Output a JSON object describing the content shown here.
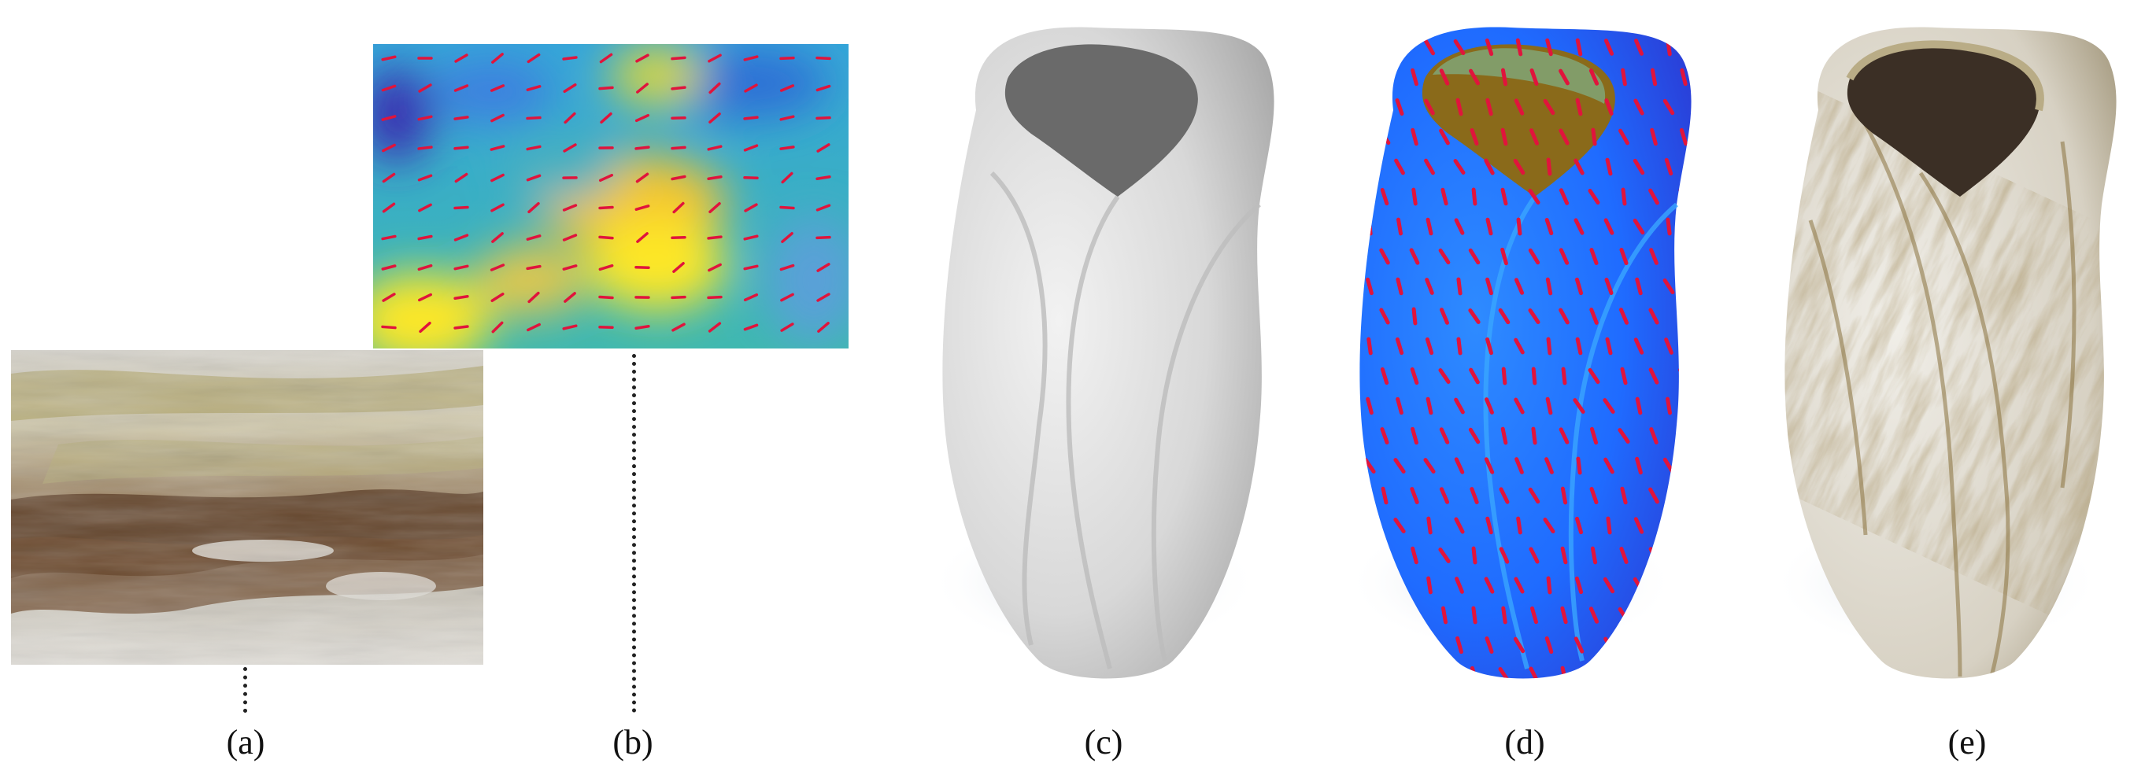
{
  "figure": {
    "panels": [
      {
        "id": "a",
        "label": "(a)",
        "content": "exemplar texture photograph"
      },
      {
        "id": "b",
        "label": "(b)",
        "content": "scalar field with direction field overlay"
      },
      {
        "id": "c",
        "label": "(c)",
        "content": "untextured vase mesh"
      },
      {
        "id": "d",
        "label": "(d)",
        "content": "field mapped onto vase"
      },
      {
        "id": "e",
        "label": "(e)",
        "content": "textured vase result"
      }
    ],
    "colors": {
      "background": "#ffffff",
      "field_low": "#3a2fb0",
      "field_mid": "#27a6c9",
      "field_high": "#fde725",
      "field_marks": "#e0143c",
      "vase_gray": "#d9d9d9",
      "vase_blue": "#1f6bff"
    }
  }
}
